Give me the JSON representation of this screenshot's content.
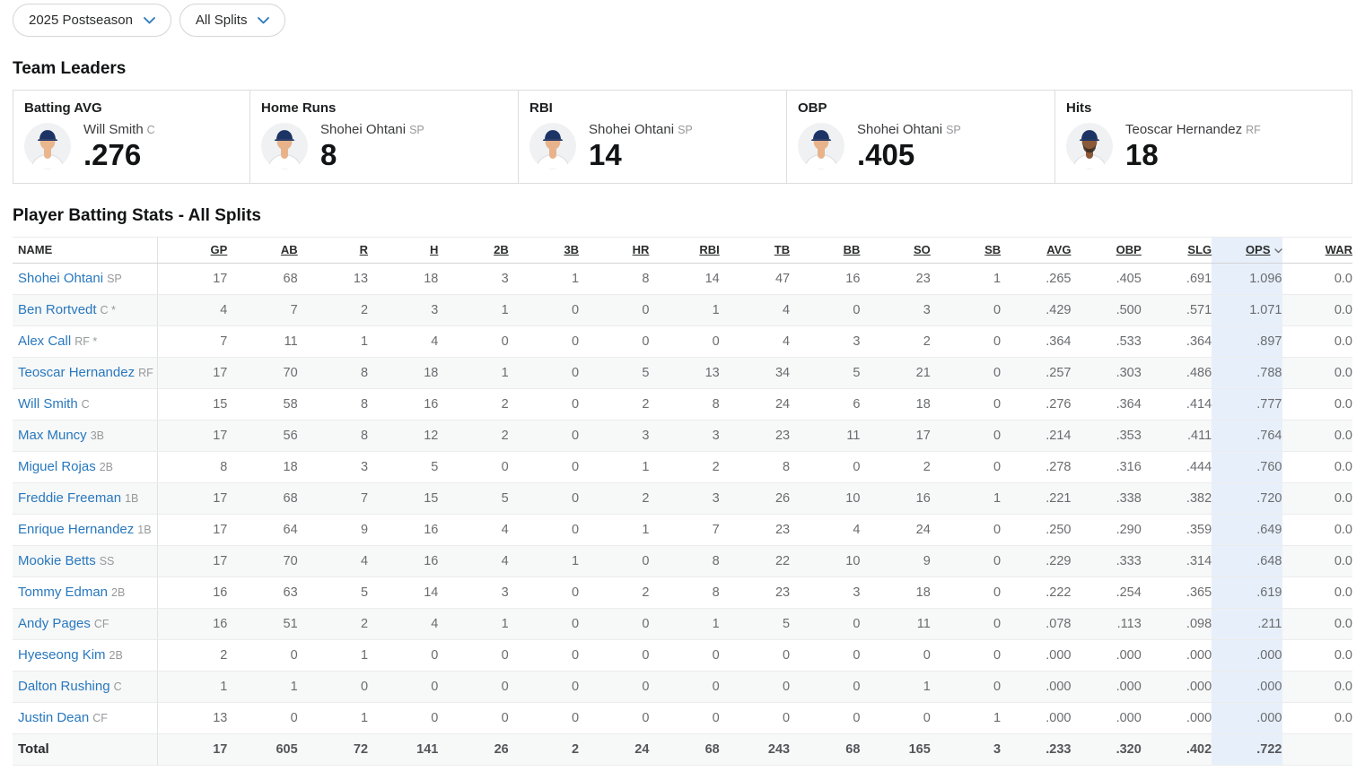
{
  "filters": {
    "season": "2025 Postseason",
    "split": "All Splits"
  },
  "colors": {
    "link_blue": "#2878be",
    "ops_highlight": "#e7f0fa",
    "row_shade": "#f7f8f8"
  },
  "team_leaders": {
    "title": "Team Leaders",
    "cards": [
      {
        "label": "Batting AVG",
        "player": "Will Smith",
        "position": "C",
        "value": ".276",
        "avatar": {
          "skin": "#eab68e",
          "cap": "#1b3365",
          "beard": false
        }
      },
      {
        "label": "Home Runs",
        "player": "Shohei Ohtani",
        "position": "SP",
        "value": "8",
        "avatar": {
          "skin": "#e8b38a",
          "cap": "#1b3365",
          "beard": false
        }
      },
      {
        "label": "RBI",
        "player": "Shohei Ohtani",
        "position": "SP",
        "value": "14",
        "avatar": {
          "skin": "#e8b38a",
          "cap": "#1b3365",
          "beard": false
        }
      },
      {
        "label": "OBP",
        "player": "Shohei Ohtani",
        "position": "SP",
        "value": ".405",
        "avatar": {
          "skin": "#e8b38a",
          "cap": "#1b3365",
          "beard": false
        }
      },
      {
        "label": "Hits",
        "player": "Teoscar Hernandez",
        "position": "RF",
        "value": "18",
        "avatar": {
          "skin": "#8a5a38",
          "cap": "#1b3365",
          "beard": true
        }
      }
    ]
  },
  "batting_table": {
    "title": "Player Batting Stats - All Splits",
    "columns": [
      "NAME",
      "GP",
      "AB",
      "R",
      "H",
      "2B",
      "3B",
      "HR",
      "RBI",
      "TB",
      "BB",
      "SO",
      "SB",
      "AVG",
      "OBP",
      "SLG",
      "OPS",
      "WAR"
    ],
    "sorted_column": "OPS",
    "rows": [
      {
        "name": "Shohei Ohtani",
        "position": "SP",
        "note": "",
        "stats": [
          "17",
          "68",
          "13",
          "18",
          "3",
          "1",
          "8",
          "14",
          "47",
          "16",
          "23",
          "1",
          ".265",
          ".405",
          ".691",
          "1.096",
          "0.0"
        ]
      },
      {
        "name": "Ben Rortvedt",
        "position": "C",
        "note": "*",
        "stats": [
          "4",
          "7",
          "2",
          "3",
          "1",
          "0",
          "0",
          "1",
          "4",
          "0",
          "3",
          "0",
          ".429",
          ".500",
          ".571",
          "1.071",
          "0.0"
        ]
      },
      {
        "name": "Alex Call",
        "position": "RF",
        "note": "*",
        "stats": [
          "7",
          "11",
          "1",
          "4",
          "0",
          "0",
          "0",
          "0",
          "4",
          "3",
          "2",
          "0",
          ".364",
          ".533",
          ".364",
          ".897",
          "0.0"
        ]
      },
      {
        "name": "Teoscar Hernandez",
        "position": "RF",
        "note": "",
        "stats": [
          "17",
          "70",
          "8",
          "18",
          "1",
          "0",
          "5",
          "13",
          "34",
          "5",
          "21",
          "0",
          ".257",
          ".303",
          ".486",
          ".788",
          "0.0"
        ]
      },
      {
        "name": "Will Smith",
        "position": "C",
        "note": "",
        "stats": [
          "15",
          "58",
          "8",
          "16",
          "2",
          "0",
          "2",
          "8",
          "24",
          "6",
          "18",
          "0",
          ".276",
          ".364",
          ".414",
          ".777",
          "0.0"
        ]
      },
      {
        "name": "Max Muncy",
        "position": "3B",
        "note": "",
        "stats": [
          "17",
          "56",
          "8",
          "12",
          "2",
          "0",
          "3",
          "3",
          "23",
          "11",
          "17",
          "0",
          ".214",
          ".353",
          ".411",
          ".764",
          "0.0"
        ]
      },
      {
        "name": "Miguel Rojas",
        "position": "2B",
        "note": "",
        "stats": [
          "8",
          "18",
          "3",
          "5",
          "0",
          "0",
          "1",
          "2",
          "8",
          "0",
          "2",
          "0",
          ".278",
          ".316",
          ".444",
          ".760",
          "0.0"
        ]
      },
      {
        "name": "Freddie Freeman",
        "position": "1B",
        "note": "",
        "stats": [
          "17",
          "68",
          "7",
          "15",
          "5",
          "0",
          "2",
          "3",
          "26",
          "10",
          "16",
          "1",
          ".221",
          ".338",
          ".382",
          ".720",
          "0.0"
        ]
      },
      {
        "name": "Enrique Hernandez",
        "position": "1B",
        "note": "",
        "stats": [
          "17",
          "64",
          "9",
          "16",
          "4",
          "0",
          "1",
          "7",
          "23",
          "4",
          "24",
          "0",
          ".250",
          ".290",
          ".359",
          ".649",
          "0.0"
        ]
      },
      {
        "name": "Mookie Betts",
        "position": "SS",
        "note": "",
        "stats": [
          "17",
          "70",
          "4",
          "16",
          "4",
          "1",
          "0",
          "8",
          "22",
          "10",
          "9",
          "0",
          ".229",
          ".333",
          ".314",
          ".648",
          "0.0"
        ]
      },
      {
        "name": "Tommy Edman",
        "position": "2B",
        "note": "",
        "stats": [
          "16",
          "63",
          "5",
          "14",
          "3",
          "0",
          "2",
          "8",
          "23",
          "3",
          "18",
          "0",
          ".222",
          ".254",
          ".365",
          ".619",
          "0.0"
        ]
      },
      {
        "name": "Andy Pages",
        "position": "CF",
        "note": "",
        "stats": [
          "16",
          "51",
          "2",
          "4",
          "1",
          "0",
          "0",
          "1",
          "5",
          "0",
          "11",
          "0",
          ".078",
          ".113",
          ".098",
          ".211",
          "0.0"
        ]
      },
      {
        "name": "Hyeseong Kim",
        "position": "2B",
        "note": "",
        "stats": [
          "2",
          "0",
          "1",
          "0",
          "0",
          "0",
          "0",
          "0",
          "0",
          "0",
          "0",
          "0",
          ".000",
          ".000",
          ".000",
          ".000",
          "0.0"
        ]
      },
      {
        "name": "Dalton Rushing",
        "position": "C",
        "note": "",
        "stats": [
          "1",
          "1",
          "0",
          "0",
          "0",
          "0",
          "0",
          "0",
          "0",
          "0",
          "1",
          "0",
          ".000",
          ".000",
          ".000",
          ".000",
          "0.0"
        ]
      },
      {
        "name": "Justin Dean",
        "position": "CF",
        "note": "",
        "stats": [
          "13",
          "0",
          "1",
          "0",
          "0",
          "0",
          "0",
          "0",
          "0",
          "0",
          "0",
          "1",
          ".000",
          ".000",
          ".000",
          ".000",
          "0.0"
        ]
      }
    ],
    "total": {
      "label": "Total",
      "stats": [
        "17",
        "605",
        "72",
        "141",
        "26",
        "2",
        "24",
        "68",
        "243",
        "68",
        "165",
        "3",
        ".233",
        ".320",
        ".402",
        ".722",
        ""
      ]
    }
  }
}
